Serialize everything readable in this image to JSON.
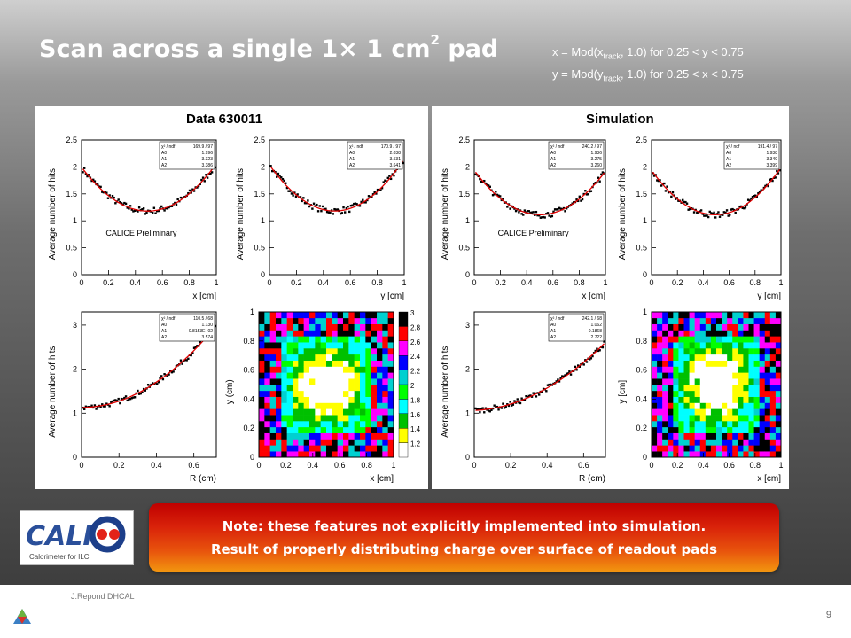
{
  "slide": {
    "title_main": "Scan across a single 1",
    "title_times": "×",
    "title_rest": " 1 cm",
    "title_sup": "2",
    "title_end": " pad",
    "def_line1": {
      "a": "x = Mod(x",
      "sub": "track",
      "b": ", 1.0)  for 0.25 < y < 0.75"
    },
    "def_line2": {
      "a": "y = Mod(y",
      "sub": "track",
      "b": ", 1.0) for 0.25 < x < 0.75"
    },
    "panels": [
      {
        "title": "Data 630011",
        "preliminary": "CALICE Preliminary"
      },
      {
        "title": "Simulation",
        "preliminary": "CALICE Preliminary"
      }
    ],
    "note_line1": "Note: these features not explicitly implemented into simulation.",
    "note_line2": "Result of properly distributing charge over surface  of readout pads",
    "logo_text": "CALICE",
    "logo_sub": "Calorimeter for ILC",
    "author": "J.Repond DHCAL",
    "page_number": "9"
  },
  "chart_data": [
    {
      "type": "scatter",
      "panel": "Data 630011",
      "position": "top-left",
      "xlabel": "x [cm]",
      "ylabel": "Average number of hits",
      "xlim": [
        0,
        1
      ],
      "ylim": [
        0,
        2.5
      ],
      "xticks": [
        "0",
        "0.2",
        "0.4",
        "0.6",
        "0.8",
        "1"
      ],
      "yticks": [
        "0",
        "0.5",
        "1",
        "1.5",
        "2",
        "2.5"
      ],
      "stats": [
        [
          "χ² / ndf",
          "169.9 / 97"
        ],
        [
          "A0",
          "1.996"
        ],
        [
          "A1",
          "−3.323"
        ],
        [
          "A2",
          "3.386"
        ]
      ],
      "fit": {
        "A0": 1.996,
        "A1": -3.323,
        "A2": 3.386
      },
      "annotation": "CALICE Preliminary"
    },
    {
      "type": "scatter",
      "panel": "Data 630011",
      "position": "top-right",
      "xlabel": "y [cm]",
      "ylabel": "Average number of hits",
      "xlim": [
        0,
        1
      ],
      "ylim": [
        0,
        2.5
      ],
      "xticks": [
        "0",
        "0.2",
        "0.4",
        "0.6",
        "0.8",
        "1"
      ],
      "yticks": [
        "0",
        "0.5",
        "1",
        "1.5",
        "2",
        "2.5"
      ],
      "stats": [
        [
          "χ² / ndf",
          "170.9 / 97"
        ],
        [
          "A0",
          "2.038"
        ],
        [
          "A1",
          "−3.531"
        ],
        [
          "A2",
          "3.641"
        ]
      ],
      "fit": {
        "A0": 2.038,
        "A1": -3.531,
        "A2": 3.641
      }
    },
    {
      "type": "scatter",
      "panel": "Data 630011",
      "position": "bottom-left",
      "xlabel": "R (cm)",
      "ylabel": "Average number of hits",
      "xlim": [
        0,
        0.72
      ],
      "ylim": [
        0,
        3.3
      ],
      "xticks": [
        "0",
        "0.2",
        "0.4",
        "0.6"
      ],
      "yticks": [
        "0",
        "1",
        "2",
        "3"
      ],
      "stats": [
        [
          "χ² / ndf",
          "110.5 / 68"
        ],
        [
          "A0",
          "1.130"
        ],
        [
          "A1",
          "0.8153E−02"
        ],
        [
          "A2",
          "3.574"
        ]
      ],
      "fit": {
        "A0": 1.13,
        "A1": 0.008153,
        "A2": 3.574
      }
    },
    {
      "type": "heatmap",
      "panel": "Data 630011",
      "position": "bottom-right",
      "xlabel": "x [cm]",
      "ylabel": "y (cm)",
      "xlim": [
        0,
        1
      ],
      "ylim": [
        0,
        1
      ],
      "xticks": [
        "0",
        "0.2",
        "0.4",
        "0.6",
        "0.8",
        "1"
      ],
      "yticks": [
        "0",
        "0.2",
        "0.4",
        "0.6",
        "0.8",
        "1"
      ],
      "bins": 24,
      "center_value": 1.15,
      "edge_value": 2.7,
      "colorbar": [
        "1.2",
        "1.4",
        "1.6",
        "1.8",
        "2",
        "2.2",
        "2.4",
        "2.6",
        "2.8",
        "3"
      ]
    },
    {
      "type": "scatter",
      "panel": "Simulation",
      "position": "top-left",
      "xlabel": "x [cm]",
      "ylabel": "Average number of hits",
      "xlim": [
        0,
        1
      ],
      "ylim": [
        0,
        2.5
      ],
      "xticks": [
        "0",
        "0.2",
        "0.4",
        "0.6",
        "0.8",
        "1"
      ],
      "yticks": [
        "0",
        "0.5",
        "1",
        "1.5",
        "2",
        "2.5"
      ],
      "stats": [
        [
          "χ² / ndf",
          "240.2 / 97"
        ],
        [
          "A0",
          "1.936"
        ],
        [
          "A1",
          "−3.275"
        ],
        [
          "A2",
          "3.260"
        ]
      ],
      "fit": {
        "A0": 1.936,
        "A1": -3.275,
        "A2": 3.26
      },
      "annotation": "CALICE Preliminary"
    },
    {
      "type": "scatter",
      "panel": "Simulation",
      "position": "top-right",
      "xlabel": "y [cm]",
      "ylabel": "Average number of hits",
      "xlim": [
        0,
        1
      ],
      "ylim": [
        0,
        2.5
      ],
      "xticks": [
        "0",
        "0.2",
        "0.4",
        "0.6",
        "0.8",
        "1"
      ],
      "yticks": [
        "0",
        "0.5",
        "1",
        "1.5",
        "2",
        "2.5"
      ],
      "stats": [
        [
          "χ² / ndf",
          "191.4 / 97"
        ],
        [
          "A0",
          "1.938"
        ],
        [
          "A1",
          "−3.349"
        ],
        [
          "A2",
          "3.399"
        ]
      ],
      "fit": {
        "A0": 1.938,
        "A1": -3.349,
        "A2": 3.399
      }
    },
    {
      "type": "scatter",
      "panel": "Simulation",
      "position": "bottom-left",
      "xlabel": "R (cm)",
      "ylabel": "Average number of hits",
      "xlim": [
        0,
        0.72
      ],
      "ylim": [
        0,
        3.3
      ],
      "xticks": [
        "0",
        "0.2",
        "0.4",
        "0.6"
      ],
      "yticks": [
        "0",
        "1",
        "2",
        "3"
      ],
      "stats": [
        [
          "χ² / ndf",
          "242.1 / 68"
        ],
        [
          "A0",
          "1.062"
        ],
        [
          "A1",
          "0.1868"
        ],
        [
          "A2",
          "2.722"
        ]
      ],
      "fit": {
        "A0": 1.062,
        "A1": 0.1868,
        "A2": 2.722
      }
    },
    {
      "type": "heatmap",
      "panel": "Simulation",
      "position": "bottom-right",
      "xlabel": "x [cm]",
      "ylabel": "y [cm]",
      "xlim": [
        0,
        1
      ],
      "ylim": [
        0,
        1
      ],
      "xticks": [
        "0",
        "0.2",
        "0.4",
        "0.6",
        "0.8",
        "1"
      ],
      "yticks": [
        "0",
        "0.2",
        "0.4",
        "0.6",
        "0.8",
        "1"
      ],
      "bins": 24,
      "center_value": 1.15,
      "edge_value": 2.7
    }
  ],
  "colors": {
    "data_points": "#000000",
    "fit_line": "#e00000",
    "palette": [
      "#ffffff",
      "#ffff00",
      "#00c000",
      "#00ffff",
      "#00ff00",
      "#00d0d0",
      "#0000ff",
      "#ff00ff",
      "#ff0000",
      "#000000"
    ]
  }
}
